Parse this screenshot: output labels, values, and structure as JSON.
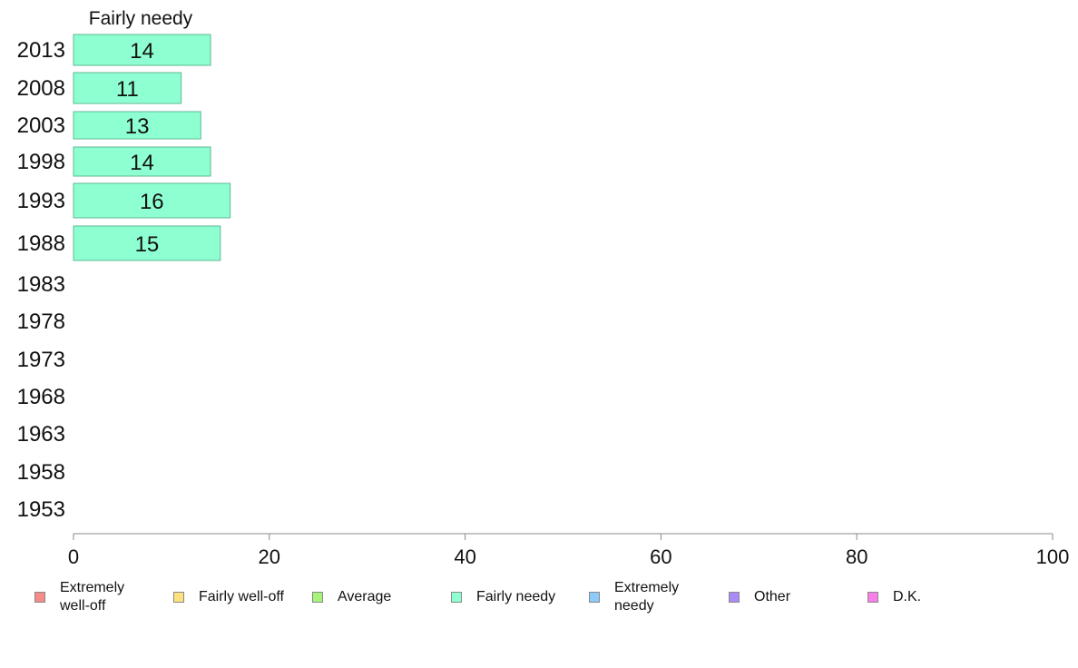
{
  "chart_data": {
    "type": "bar",
    "orientation": "horizontal",
    "panel_title": "Fairly needy",
    "categories": [
      "2013",
      "2008",
      "2003",
      "1998",
      "1993",
      "1988",
      "1983",
      "1978",
      "1973",
      "1968",
      "1963",
      "1958",
      "1953"
    ],
    "series": [
      {
        "name": "Fairly needy",
        "values": [
          14,
          11,
          13,
          14,
          16,
          15,
          null,
          null,
          null,
          null,
          null,
          null,
          null
        ]
      }
    ],
    "xlim": [
      0,
      100
    ],
    "xticks": [
      "0",
      "20",
      "40",
      "60",
      "80",
      "100"
    ],
    "legend": [
      {
        "label": "Extremely well-off",
        "color": "#f88a8a"
      },
      {
        "label": "Fairly well-off",
        "color": "#fbe27e"
      },
      {
        "label": "Average",
        "color": "#a6f47c"
      },
      {
        "label": "Fairly needy",
        "color": "#8effd0"
      },
      {
        "label": "Extremely needy",
        "color": "#8ccaf7"
      },
      {
        "label": "Other",
        "color": "#a98af7"
      },
      {
        "label": "D.K.",
        "color": "#fa7ee9"
      }
    ],
    "bar_color": "#8effd0",
    "bar_edge_color": "#5fb894",
    "axis_color": "#888888",
    "legend_position": "bottom",
    "grid": false
  }
}
